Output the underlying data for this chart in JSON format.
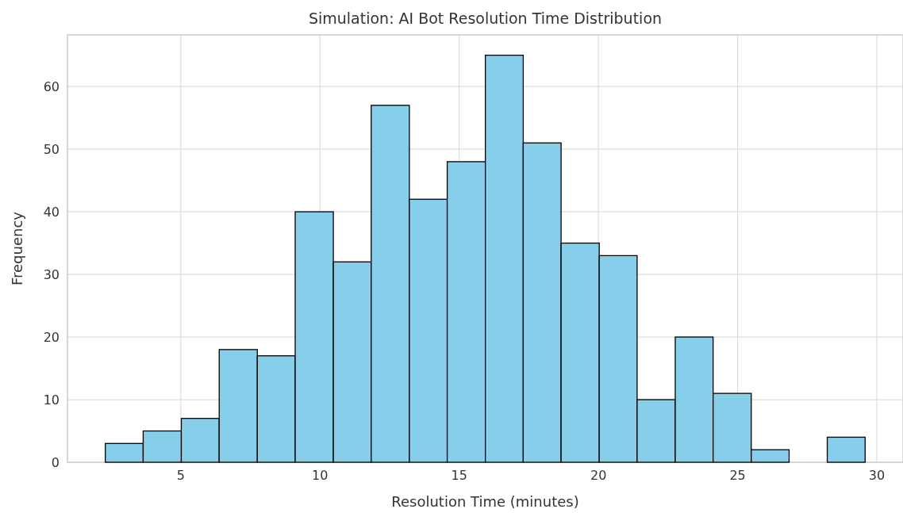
{
  "chart_data": {
    "type": "histogram",
    "title": "Simulation: AI Bot Resolution Time Distribution",
    "xlabel": "Resolution Time (minutes)",
    "ylabel": "Frequency",
    "bins": [
      2.29,
      3.65,
      5.02,
      6.38,
      7.75,
      9.11,
      10.48,
      11.84,
      13.21,
      14.57,
      15.94,
      17.3,
      18.66,
      20.03,
      21.39,
      22.76,
      24.12,
      25.49,
      26.85,
      28.22,
      29.58
    ],
    "values": [
      3,
      5,
      7,
      18,
      17,
      40,
      32,
      57,
      42,
      48,
      65,
      51,
      35,
      33,
      10,
      20,
      11,
      2,
      0,
      4
    ],
    "color": "#87ceeb",
    "xlim": [
      0.93,
      30.94
    ],
    "ylim": [
      0,
      68.25
    ],
    "xticks": [
      5,
      10,
      15,
      20,
      25,
      30
    ],
    "yticks": [
      0,
      10,
      20,
      30,
      40,
      50,
      60
    ],
    "grid": true
  }
}
